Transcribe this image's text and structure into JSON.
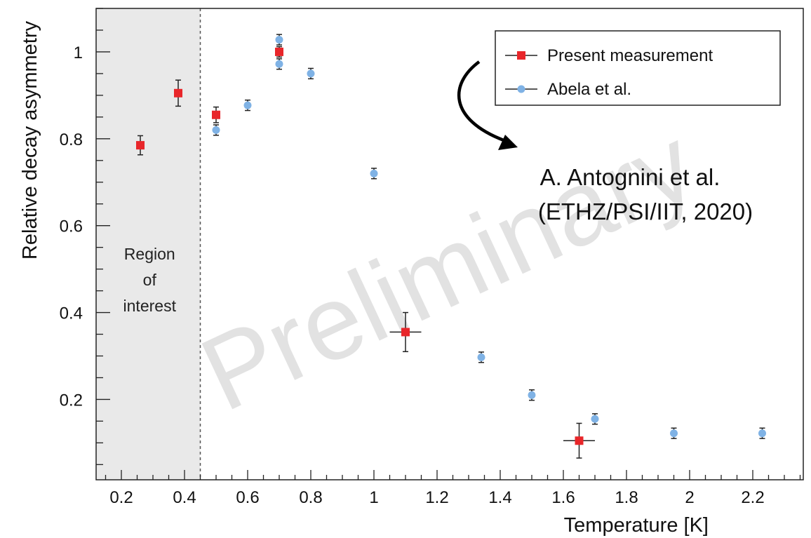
{
  "chart_data": {
    "type": "scatter",
    "xlabel": "Temperature [K]",
    "ylabel": "Relative decay asymmetry",
    "xlim": [
      0.12,
      2.36
    ],
    "ylim": [
      0.015,
      1.1
    ],
    "x_ticks": [
      "0.2",
      "0.4",
      "0.6",
      "0.8",
      "1",
      "1.2",
      "1.4",
      "1.6",
      "1.8",
      "2",
      "2.2"
    ],
    "x_tick_values": [
      0.2,
      0.4,
      0.6,
      0.8,
      1.0,
      1.2,
      1.4,
      1.6,
      1.8,
      2.0,
      2.2
    ],
    "y_ticks": [
      "0.2",
      "0.4",
      "0.6",
      "0.8",
      "1"
    ],
    "y_tick_values": [
      0.2,
      0.4,
      0.6,
      0.8,
      1.0
    ],
    "grid": false,
    "legend_position": "top-right",
    "region_of_interest": {
      "x_range": [
        0.12,
        0.45
      ],
      "label_lines": [
        "Region",
        "of",
        "interest"
      ]
    },
    "watermark": "Preliminary",
    "annotation_lines": [
      "A. Antognini et al.",
      "(ETHZ/PSI/IIT, 2020)"
    ],
    "series": [
      {
        "name": "Present measurement",
        "color": "#e8262a",
        "marker": "square",
        "points": [
          {
            "x": 0.26,
            "y": 0.785,
            "yerr": 0.022,
            "xerr": 0
          },
          {
            "x": 0.38,
            "y": 0.905,
            "yerr": 0.03,
            "xerr": 0
          },
          {
            "x": 0.5,
            "y": 0.855,
            "yerr": 0.018,
            "xerr": 0
          },
          {
            "x": 0.7,
            "y": 1.0,
            "yerr": 0.012,
            "xerr": 0
          },
          {
            "x": 1.1,
            "y": 0.355,
            "yerr": 0.045,
            "xerr": 0.05
          },
          {
            "x": 1.65,
            "y": 0.105,
            "yerr": 0.04,
            "xerr": 0.05
          }
        ]
      },
      {
        "name": "Abela et al.",
        "color": "#7fb2e5",
        "marker": "circle",
        "points": [
          {
            "x": 0.5,
            "y": 0.82,
            "yerr": 0.012,
            "xerr": 0
          },
          {
            "x": 0.6,
            "y": 0.877,
            "yerr": 0.012,
            "xerr": 0
          },
          {
            "x": 0.7,
            "y": 1.028,
            "yerr": 0.012,
            "xerr": 0
          },
          {
            "x": 0.7,
            "y": 0.972,
            "yerr": 0.012,
            "xerr": 0
          },
          {
            "x": 0.8,
            "y": 0.95,
            "yerr": 0.012,
            "xerr": 0
          },
          {
            "x": 1.0,
            "y": 0.72,
            "yerr": 0.012,
            "xerr": 0
          },
          {
            "x": 1.34,
            "y": 0.297,
            "yerr": 0.012,
            "xerr": 0
          },
          {
            "x": 1.5,
            "y": 0.21,
            "yerr": 0.012,
            "xerr": 0
          },
          {
            "x": 1.7,
            "y": 0.155,
            "yerr": 0.012,
            "xerr": 0
          },
          {
            "x": 1.95,
            "y": 0.122,
            "yerr": 0.012,
            "xerr": 0
          },
          {
            "x": 2.23,
            "y": 0.122,
            "yerr": 0.012,
            "xerr": 0
          }
        ]
      }
    ]
  }
}
